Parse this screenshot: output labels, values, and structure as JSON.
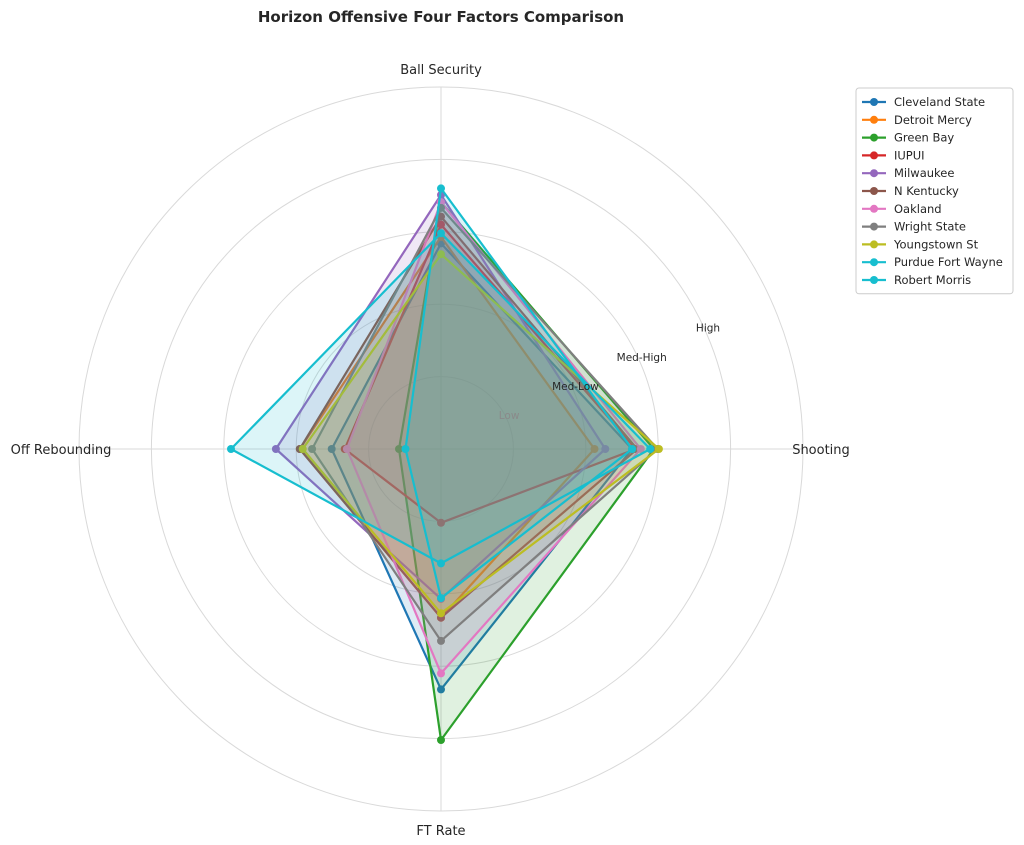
{
  "chart_data": {
    "type": "radar",
    "title": "Horizon Offensive Four Factors Comparison",
    "axes": [
      "Ball Security",
      "Shooting",
      "FT Rate",
      "Off Rebounding"
    ],
    "rings": [
      "Low",
      "Med-Low",
      "Med-High",
      "High"
    ],
    "r_range": [
      0,
      5
    ],
    "grid": true,
    "legend_position": "top-right",
    "series": [
      {
        "name": "Cleveland State",
        "color": "#1f77b4",
        "values": [
          2.84,
          2.64,
          3.32,
          1.51
        ]
      },
      {
        "name": "Detroit Mercy",
        "color": "#ff7f0e",
        "values": [
          2.93,
          2.12,
          2.33,
          1.95
        ]
      },
      {
        "name": "Green Bay",
        "color": "#2ca02c",
        "values": [
          3.41,
          2.94,
          4.02,
          0.58
        ]
      },
      {
        "name": "IUPUI",
        "color": "#d62728",
        "values": [
          3.1,
          2.69,
          1.02,
          1.33
        ]
      },
      {
        "name": "Milwaukee",
        "color": "#9467bd",
        "values": [
          3.51,
          2.27,
          2.07,
          2.28
        ]
      },
      {
        "name": "N Kentucky",
        "color": "#8c564b",
        "values": [
          3.21,
          2.71,
          2.33,
          1.95
        ]
      },
      {
        "name": "Oakland",
        "color": "#e377c2",
        "values": [
          3.41,
          2.76,
          3.1,
          1.3
        ]
      },
      {
        "name": "Wright State",
        "color": "#7f7f7f",
        "values": [
          3.33,
          2.99,
          2.65,
          1.78
        ]
      },
      {
        "name": "Youngstown St",
        "color": "#bcbd22",
        "values": [
          2.69,
          3.01,
          2.27,
          1.91
        ]
      },
      {
        "name": "Purdue Fort Wayne",
        "color": "#17becf",
        "values": [
          2.98,
          2.89,
          1.58,
          2.9
        ]
      },
      {
        "name": "Robert Morris",
        "color": "#17becf",
        "values": [
          3.6,
          2.64,
          2.06,
          0.49
        ]
      }
    ]
  }
}
